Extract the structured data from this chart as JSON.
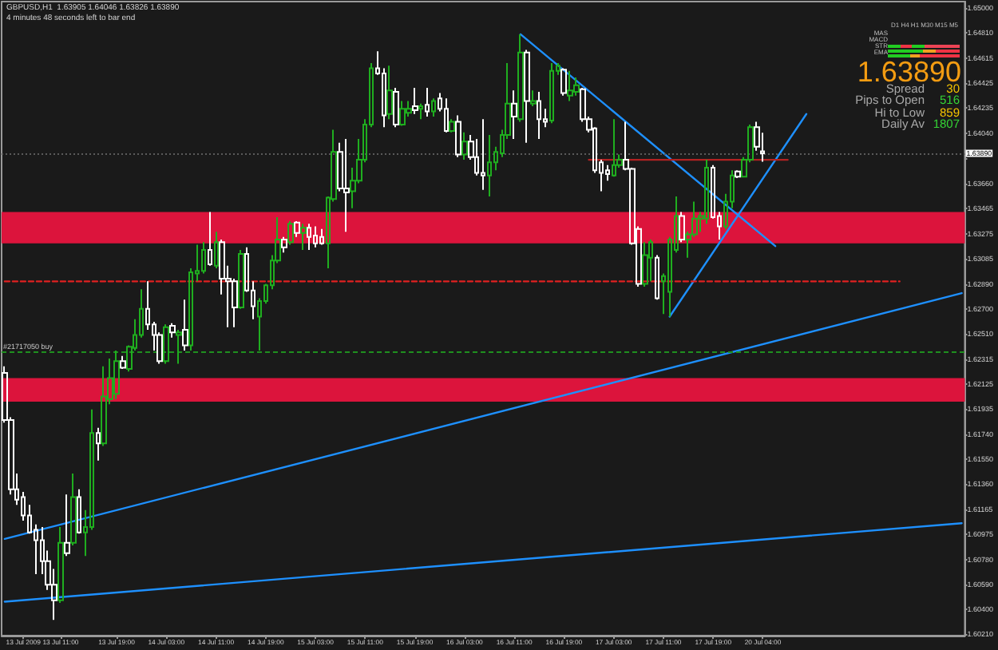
{
  "chart_data": {
    "type": "candlestick",
    "title": "GBPUSD,H1  1.63905 1.64046 1.63826 1.63890",
    "subtitle": "4 minutes 48 seconds left to bar end",
    "annotations": [
      "D1 H4 H1 M30 M15 M5",
      "MAS",
      "MACD",
      "STR",
      "EMA",
      "1.63890",
      "Spread",
      "30",
      "Pips to Open",
      "516",
      "Hi to Low",
      "859",
      "Daily Av",
      "1807"
    ],
    "categories": [
      null,
      null,
      null,
      "13 Jul 2009",
      null,
      null,
      null,
      null,
      null,
      "13 Jul 11:00",
      null,
      null,
      null,
      null,
      null,
      null,
      null,
      null,
      "13 Jul 19:00",
      null,
      null,
      null,
      null,
      null,
      null,
      null,
      "14 Jul 03:00",
      null,
      null,
      null,
      null,
      null,
      null,
      null,
      "14 Jul 11:00",
      null,
      null,
      null,
      null,
      null,
      null,
      null,
      "14 Jul 19:00",
      null,
      null,
      null,
      null,
      null,
      null,
      null,
      "15 Jul 03:00",
      null,
      null,
      null,
      null,
      null,
      null,
      null,
      "15 Jul 11:00",
      null,
      null,
      null,
      null,
      null,
      null,
      null,
      "15 Jul 19:00",
      null,
      null,
      null,
      null,
      null,
      null,
      null,
      "16 Jul 03:00",
      null,
      null,
      null,
      null,
      null,
      null,
      null,
      "16 Jul 11:00",
      null,
      null,
      null,
      null,
      null,
      null,
      null,
      "16 Jul 19:00",
      null,
      null,
      null,
      null,
      null,
      null,
      null,
      "17 Jul 03:00",
      null,
      null,
      null,
      null,
      null,
      null,
      null,
      "17 Jul 11:00",
      null,
      null,
      null,
      null,
      null,
      null,
      null,
      "17 Jul 19:00",
      null,
      null,
      null,
      null,
      null,
      null,
      null,
      "20 Jul 04:00",
      null,
      null,
      null,
      null,
      null,
      null,
      null,
      null,
      null,
      null,
      null,
      null,
      null,
      null,
      null,
      null,
      null,
      null,
      null,
      null,
      null,
      null,
      null,
      null,
      null,
      null,
      null,
      null,
      null,
      null,
      null,
      null
    ],
    "ylim": [
      1.602,
      1.6505
    ],
    "yticks": [
      {
        "value": 1.6021,
        "label": "1.60210"
      },
      {
        "value": 1.604,
        "label": "1.60400"
      },
      {
        "value": 1.6059,
        "label": "1.60590"
      },
      {
        "value": 1.6078,
        "label": "1.60780"
      },
      {
        "value": 1.60975,
        "label": "1.60975"
      },
      {
        "value": 1.61165,
        "label": "1.61165"
      },
      {
        "value": 1.6136,
        "label": "1.61360"
      },
      {
        "value": 1.6155,
        "label": "1.61550"
      },
      {
        "value": 1.6174,
        "label": "1.61740"
      },
      {
        "value": 1.61935,
        "label": "1.61935"
      },
      {
        "value": 1.62125,
        "label": "1.62125"
      },
      {
        "value": 1.62315,
        "label": "1.62315"
      },
      {
        "value": 1.6251,
        "label": "1.62510"
      },
      {
        "value": 1.627,
        "label": "1.62700"
      },
      {
        "value": 1.6289,
        "label": "1.62890"
      },
      {
        "value": 1.63085,
        "label": "1.63085"
      },
      {
        "value": 1.63275,
        "label": "1.63275"
      },
      {
        "value": 1.63465,
        "label": "1.63465"
      },
      {
        "value": 1.6366,
        "label": "1.63660"
      },
      {
        "value": 1.6385,
        "label": null
      },
      {
        "value": 1.6404,
        "label": "1.64040"
      },
      {
        "value": 1.64235,
        "label": "1.64235"
      },
      {
        "value": 1.64425,
        "label": "1.64425"
      },
      {
        "value": 1.64615,
        "label": "1.64615"
      },
      {
        "value": 1.6481,
        "label": "1.64810"
      },
      {
        "value": 1.65,
        "label": "1.65000"
      }
    ],
    "bands": [
      {
        "axis": "y",
        "from": 1.632,
        "to": 1.6344,
        "color": "#dc143c"
      },
      {
        "axis": "y",
        "from": 1.6199,
        "to": 1.6217,
        "color": "#dc143c"
      }
    ],
    "ref_lines": [
      {
        "axis": "y",
        "value": 1.6237,
        "label": "#21717050 buy",
        "color": "#1f8f1f",
        "line_style": "dashed"
      },
      {
        "axis": "y",
        "value": 1.6389,
        "label": "1.63890",
        "color": "#5a5a5a",
        "line_style": "dotted"
      }
    ],
    "series": [
      {
        "type": "line",
        "color": "#1e90ff",
        "values": [
          1.6094,
          null,
          null,
          null,
          null,
          null,
          null,
          null,
          null,
          null,
          null,
          null,
          null,
          null,
          null,
          null,
          null,
          null,
          null,
          null,
          null,
          null,
          null,
          null,
          null,
          null,
          null,
          null,
          null,
          null,
          null,
          null,
          null,
          null,
          null,
          null,
          null,
          null,
          null,
          null,
          null,
          null,
          null,
          null,
          null,
          null,
          null,
          null,
          null,
          null,
          null,
          null,
          null,
          null,
          null,
          null,
          null,
          null,
          null,
          null,
          null,
          null,
          null,
          null,
          null,
          null,
          null,
          null,
          null,
          null,
          null,
          null,
          null,
          null,
          null,
          null,
          null,
          null,
          null,
          null,
          null,
          null,
          null,
          null,
          null,
          null,
          null,
          null,
          null,
          null,
          null,
          null,
          null,
          null,
          null,
          null,
          null,
          null,
          null,
          null,
          null,
          null,
          null,
          null,
          null,
          null,
          null,
          null,
          null,
          null,
          null,
          null,
          null,
          null,
          null,
          null,
          null,
          null,
          null,
          null,
          null,
          null,
          null,
          null,
          null,
          null,
          null,
          null,
          null,
          null,
          null,
          null,
          null,
          null,
          null,
          null,
          null,
          null,
          null,
          null,
          null,
          null,
          null,
          null,
          null,
          null,
          null,
          null,
          null,
          null,
          null,
          null,
          null,
          null,
          1.6282
        ]
      },
      {
        "type": "line",
        "color": "#1e90ff",
        "values": [
          1.6046,
          null,
          null,
          null,
          null,
          null,
          null,
          null,
          null,
          null,
          null,
          null,
          null,
          null,
          null,
          null,
          null,
          null,
          null,
          null,
          null,
          null,
          null,
          null,
          null,
          null,
          null,
          null,
          null,
          null,
          null,
          null,
          null,
          null,
          null,
          null,
          null,
          null,
          null,
          null,
          null,
          null,
          null,
          null,
          null,
          null,
          null,
          null,
          null,
          null,
          null,
          null,
          null,
          null,
          null,
          null,
          null,
          null,
          null,
          null,
          null,
          null,
          null,
          null,
          null,
          null,
          null,
          null,
          null,
          null,
          null,
          null,
          null,
          null,
          null,
          null,
          null,
          null,
          null,
          null,
          null,
          null,
          null,
          null,
          null,
          null,
          null,
          null,
          null,
          null,
          null,
          null,
          null,
          null,
          null,
          null,
          null,
          null,
          null,
          null,
          null,
          null,
          null,
          null,
          null,
          null,
          null,
          null,
          null,
          null,
          null,
          null,
          null,
          null,
          null,
          null,
          null,
          null,
          null,
          null,
          null,
          null,
          null,
          null,
          null,
          null,
          null,
          null,
          null,
          null,
          null,
          null,
          null,
          null,
          null,
          null,
          null,
          null,
          null,
          null,
          null,
          null,
          null,
          null,
          null,
          null,
          null,
          null,
          null,
          null,
          null,
          null,
          null,
          null,
          1.6106
        ]
      },
      {
        "type": "line",
        "color": "#1e90ff",
        "values": [
          null,
          null,
          null,
          null,
          null,
          null,
          null,
          null,
          null,
          null,
          null,
          null,
          null,
          null,
          null,
          null,
          null,
          null,
          null,
          null,
          null,
          null,
          null,
          null,
          null,
          null,
          null,
          null,
          null,
          null,
          null,
          null,
          null,
          null,
          null,
          null,
          null,
          null,
          null,
          null,
          null,
          null,
          null,
          null,
          null,
          null,
          null,
          null,
          null,
          null,
          null,
          null,
          null,
          null,
          null,
          null,
          null,
          null,
          null,
          null,
          null,
          null,
          null,
          null,
          null,
          null,
          null,
          null,
          null,
          null,
          null,
          null,
          null,
          null,
          null,
          null,
          null,
          null,
          null,
          null,
          null,
          null,
          null,
          1.648,
          null,
          null,
          null,
          null,
          null,
          null,
          null,
          null,
          null,
          null,
          null,
          null,
          null,
          null,
          null,
          null,
          null,
          null,
          null,
          null,
          null,
          null,
          null,
          null,
          null,
          null,
          null,
          null,
          null,
          null,
          null,
          null,
          null,
          null,
          null,
          null,
          null,
          null,
          null,
          null,
          1.6318,
          null,
          null,
          null,
          null,
          null,
          null,
          null,
          null,
          null,
          null,
          null,
          null,
          null,
          null,
          null,
          null,
          null,
          null,
          null,
          null,
          null,
          null,
          null,
          null,
          null,
          null,
          null,
          null,
          null,
          null
        ]
      },
      {
        "type": "line",
        "color": "#1e90ff",
        "values": [
          null,
          null,
          null,
          null,
          null,
          null,
          null,
          null,
          null,
          null,
          null,
          null,
          null,
          null,
          null,
          null,
          null,
          null,
          null,
          null,
          null,
          null,
          null,
          null,
          null,
          null,
          null,
          null,
          null,
          null,
          null,
          null,
          null,
          null,
          null,
          null,
          null,
          null,
          null,
          null,
          null,
          null,
          null,
          null,
          null,
          null,
          null,
          null,
          null,
          null,
          null,
          null,
          null,
          null,
          null,
          null,
          null,
          null,
          null,
          null,
          null,
          null,
          null,
          null,
          null,
          null,
          null,
          null,
          null,
          null,
          null,
          null,
          null,
          null,
          null,
          null,
          null,
          null,
          null,
          null,
          null,
          null,
          null,
          null,
          null,
          null,
          null,
          null,
          null,
          null,
          null,
          null,
          null,
          null,
          null,
          null,
          null,
          null,
          null,
          null,
          null,
          null,
          null,
          null,
          null,
          null,
          null,
          1.6264,
          null,
          null,
          null,
          null,
          null,
          null,
          null,
          null,
          null,
          null,
          null,
          null,
          null,
          null,
          null,
          null,
          null,
          null,
          null,
          null,
          null,
          1.6419,
          null,
          null,
          null,
          null,
          null,
          null,
          null,
          null,
          null,
          null,
          null,
          null,
          null,
          null,
          null,
          null,
          null,
          null,
          null,
          null,
          null,
          null,
          null,
          null,
          null
        ]
      },
      {
        "type": "line",
        "color": "#b22222",
        "values": [
          null,
          null,
          null,
          null,
          null,
          null,
          null,
          null,
          null,
          null,
          null,
          null,
          null,
          null,
          null,
          null,
          null,
          null,
          null,
          null,
          null,
          null,
          null,
          null,
          null,
          null,
          null,
          null,
          null,
          null,
          null,
          null,
          null,
          null,
          null,
          null,
          null,
          null,
          null,
          null,
          null,
          null,
          null,
          null,
          null,
          null,
          null,
          null,
          null,
          null,
          null,
          null,
          null,
          null,
          null,
          null,
          null,
          null,
          null,
          null,
          null,
          null,
          null,
          null,
          null,
          null,
          null,
          null,
          null,
          null,
          null,
          null,
          null,
          null,
          null,
          null,
          null,
          null,
          null,
          null,
          null,
          null,
          null,
          null,
          null,
          null,
          null,
          null,
          null,
          null,
          null,
          null,
          null,
          null,
          1.6384,
          null,
          null,
          null,
          null,
          null,
          null,
          null,
          null,
          null,
          null,
          null,
          null,
          null,
          null,
          null,
          null,
          null,
          null,
          null,
          null,
          null,
          null,
          null,
          null,
          null,
          null,
          null,
          null,
          null,
          null,
          null,
          1.6384,
          null,
          null,
          null,
          null,
          null,
          null,
          null,
          null,
          null,
          null,
          null,
          null,
          null,
          null,
          null,
          null,
          null,
          null,
          null,
          null,
          null,
          null,
          null,
          null,
          null,
          null,
          null,
          null
        ]
      },
      {
        "type": "line",
        "color": "#e02020",
        "line_style": "dashed",
        "values": [
          1.6291,
          null,
          null,
          null,
          null,
          null,
          null,
          null,
          null,
          null,
          null,
          null,
          null,
          null,
          null,
          null,
          null,
          null,
          null,
          null,
          null,
          null,
          null,
          null,
          null,
          null,
          null,
          null,
          null,
          null,
          null,
          null,
          null,
          null,
          null,
          null,
          null,
          null,
          null,
          null,
          null,
          null,
          null,
          null,
          null,
          null,
          null,
          null,
          null,
          null,
          null,
          null,
          null,
          null,
          null,
          null,
          null,
          null,
          null,
          null,
          null,
          null,
          null,
          null,
          null,
          null,
          null,
          null,
          null,
          null,
          null,
          null,
          null,
          null,
          null,
          null,
          null,
          null,
          null,
          null,
          null,
          null,
          null,
          null,
          null,
          null,
          null,
          null,
          null,
          null,
          null,
          null,
          null,
          null,
          null,
          null,
          null,
          null,
          null,
          null,
          null,
          null,
          null,
          null,
          null,
          null,
          null,
          null,
          null,
          null,
          null,
          null,
          null,
          null,
          null,
          null,
          null,
          null,
          null,
          null,
          null,
          null,
          null,
          null,
          null,
          null,
          null,
          null,
          null,
          null,
          null,
          null,
          null,
          null,
          null,
          null,
          null,
          null,
          null,
          null,
          null,
          null,
          null,
          null,
          1.6291,
          null,
          null,
          null,
          null,
          null,
          null,
          null,
          null,
          null,
          null
        ]
      },
      {
        "ohlc": [
          [
            1.6221,
            1.6226,
            1.6183,
            1.6185
          ],
          [
            1.6185,
            1.6187,
            1.6128,
            1.6132
          ],
          [
            1.6132,
            1.6144,
            1.612,
            1.6124
          ],
          [
            1.6126,
            1.613,
            1.6108,
            1.6112
          ],
          [
            1.6112,
            1.612,
            1.6098,
            1.6099
          ],
          [
            1.6101,
            1.6105,
            1.6067,
            1.6093
          ],
          [
            1.6093,
            1.6103,
            1.6067,
            1.6077
          ],
          [
            1.6077,
            1.6085,
            1.6055,
            1.6059
          ],
          [
            1.6059,
            1.6071,
            1.6032,
            1.6047
          ],
          [
            1.6047,
            1.6103,
            1.6045,
            1.6091
          ],
          [
            1.6091,
            1.6128,
            1.6081,
            1.6083
          ],
          [
            1.6091,
            1.6144,
            1.6089,
            1.6126
          ],
          [
            1.6126,
            1.6132,
            1.6098,
            1.6099
          ],
          [
            1.6099,
            1.6116,
            1.6081,
            1.6103
          ],
          [
            1.6103,
            1.6193,
            1.6101,
            1.6175
          ],
          [
            1.6175,
            1.6179,
            1.6154,
            1.6167
          ],
          [
            1.6167,
            1.6226,
            1.6165,
            1.6203
          ],
          [
            1.6201,
            1.6232,
            1.6197,
            1.6217
          ],
          [
            1.6205,
            1.6238,
            1.6201,
            1.623
          ],
          [
            1.623,
            1.6234,
            1.6224,
            1.6225
          ],
          [
            1.6224,
            1.6242,
            1.6222,
            1.6241
          ],
          [
            1.624,
            1.6262,
            1.6238,
            1.625
          ],
          [
            1.625,
            1.6285,
            1.6248,
            1.627
          ],
          [
            1.627,
            1.6291,
            1.6254,
            1.6258
          ],
          [
            1.6258,
            1.626,
            1.6238,
            1.625
          ],
          [
            1.625,
            1.6252,
            1.6228,
            1.623
          ],
          [
            1.623,
            1.6258,
            1.6228,
            1.6256
          ],
          [
            1.6257,
            1.6259,
            1.6248,
            1.6252
          ],
          [
            1.625,
            1.6254,
            1.6228,
            1.6252
          ],
          [
            1.6254,
            1.6277,
            1.6238,
            1.6242
          ],
          [
            1.6242,
            1.6301,
            1.6238,
            1.6298
          ],
          [
            1.6297,
            1.6319,
            1.6291,
            1.6299
          ],
          [
            1.6299,
            1.6321,
            1.6297,
            1.6315
          ],
          [
            1.6315,
            1.6344,
            1.6303,
            1.6304
          ],
          [
            1.6303,
            1.6329,
            1.6301,
            1.6321
          ],
          [
            1.6321,
            1.6323,
            1.6281,
            1.6293
          ],
          [
            1.6293,
            1.6303,
            1.6256,
            1.6291
          ],
          [
            1.6291,
            1.6293,
            1.6256,
            1.6271
          ],
          [
            1.6271,
            1.6315,
            1.627,
            1.6312
          ],
          [
            1.6312,
            1.6317,
            1.6283,
            1.6284
          ],
          [
            1.6284,
            1.6291,
            1.6262,
            1.6272
          ],
          [
            1.6264,
            1.6278,
            1.6238,
            1.6276
          ],
          [
            1.6276,
            1.6289,
            1.6274,
            1.6288
          ],
          [
            1.6288,
            1.6311,
            1.6285,
            1.6307
          ],
          [
            1.6307,
            1.634,
            1.6305,
            1.6323
          ],
          [
            1.6323,
            1.6325,
            1.6313,
            1.6317
          ],
          [
            1.6321,
            1.6337,
            1.6319,
            1.6335
          ],
          [
            1.6336,
            1.6337,
            1.6325,
            1.6328
          ],
          [
            1.6328,
            1.6335,
            1.6315,
            1.6332
          ],
          [
            1.6332,
            1.6335,
            1.6315,
            1.6325
          ],
          [
            1.6326,
            1.6333,
            1.6317,
            1.632
          ],
          [
            1.6325,
            1.6331,
            1.6319,
            1.632
          ],
          [
            1.632,
            1.6356,
            1.6301,
            1.6355
          ],
          [
            1.6354,
            1.6407,
            1.6352,
            1.639
          ],
          [
            1.639,
            1.6397,
            1.636,
            1.6362
          ],
          [
            1.6362,
            1.64,
            1.6329,
            1.6359
          ],
          [
            1.636,
            1.6378,
            1.6347,
            1.6368
          ],
          [
            1.6368,
            1.64,
            1.6366,
            1.6384
          ],
          [
            1.6384,
            1.6415,
            1.6382,
            1.6411
          ],
          [
            1.6411,
            1.6458,
            1.6409,
            1.6454
          ],
          [
            1.6454,
            1.6467,
            1.6449,
            1.645
          ],
          [
            1.645,
            1.6454,
            1.6409,
            1.6418
          ],
          [
            1.6419,
            1.6456,
            1.6415,
            1.6437
          ],
          [
            1.6436,
            1.6439,
            1.6409,
            1.6411
          ],
          [
            1.6411,
            1.6429,
            1.641,
            1.6423
          ],
          [
            1.642,
            1.6429,
            1.6417,
            1.6423
          ],
          [
            1.6425,
            1.6439,
            1.6419,
            1.6422
          ],
          [
            1.6423,
            1.6427,
            1.6415,
            1.6425
          ],
          [
            1.6426,
            1.6439,
            1.6417,
            1.6421
          ],
          [
            1.6421,
            1.6431,
            1.6417,
            1.6429
          ],
          [
            1.6431,
            1.6435,
            1.6421,
            1.6423
          ],
          [
            1.6423,
            1.6431,
            1.6405,
            1.6406
          ],
          [
            1.6406,
            1.6415,
            1.6405,
            1.6413
          ],
          [
            1.6413,
            1.6418,
            1.6386,
            1.6388
          ],
          [
            1.6388,
            1.6405,
            1.6384,
            1.6398
          ],
          [
            1.6398,
            1.6403,
            1.6384,
            1.6386
          ],
          [
            1.6386,
            1.64,
            1.6372,
            1.6374
          ],
          [
            1.6374,
            1.6415,
            1.6361,
            1.6372
          ],
          [
            1.6372,
            1.6403,
            1.6356,
            1.6382
          ],
          [
            1.6382,
            1.6394,
            1.6376,
            1.639
          ],
          [
            1.6389,
            1.6407,
            1.6386,
            1.6403
          ],
          [
            1.6403,
            1.6458,
            1.64,
            1.6427
          ],
          [
            1.6427,
            1.6437,
            1.64,
            1.6417
          ],
          [
            1.6415,
            1.648,
            1.6413,
            1.6466
          ],
          [
            1.6466,
            1.6468,
            1.6397,
            1.6429
          ],
          [
            1.6427,
            1.6437,
            1.6425,
            1.6429
          ],
          [
            1.6429,
            1.6436,
            1.64,
            1.6415
          ],
          [
            1.6415,
            1.6423,
            1.6409,
            1.6413
          ],
          [
            1.6414,
            1.6458,
            1.6412,
            1.6452
          ],
          [
            1.6452,
            1.6458,
            1.6449,
            1.6456
          ],
          [
            1.6453,
            1.6454,
            1.6433,
            1.6435
          ],
          [
            1.6433,
            1.6452,
            1.6429,
            1.6437
          ],
          [
            1.6436,
            1.6447,
            1.6433,
            1.6441
          ],
          [
            1.6438,
            1.6439,
            1.6413,
            1.6415
          ],
          [
            1.6415,
            1.6417,
            1.6405,
            1.6407
          ],
          [
            1.6408,
            1.6409,
            1.6374,
            1.6376
          ],
          [
            1.6382,
            1.6384,
            1.636,
            1.6374
          ],
          [
            1.6376,
            1.638,
            1.6368,
            1.6373
          ],
          [
            1.6372,
            1.6415,
            1.6371,
            1.638
          ],
          [
            1.638,
            1.6388,
            1.6378,
            1.6384
          ],
          [
            1.6384,
            1.6413,
            1.6376,
            1.6377
          ],
          [
            1.6377,
            1.6378,
            1.6319,
            1.632
          ],
          [
            1.6331,
            1.6333,
            1.6287,
            1.6289
          ],
          [
            1.6289,
            1.6321,
            1.6287,
            1.6311
          ],
          [
            1.6309,
            1.6323,
            1.6291,
            1.6321
          ],
          [
            1.6309,
            1.6311,
            1.6277,
            1.6278
          ],
          [
            1.6291,
            1.6297,
            1.6266,
            1.6295
          ],
          [
            1.6283,
            1.6325,
            1.6264,
            1.6323
          ],
          [
            1.6315,
            1.6356,
            1.6313,
            1.6341
          ],
          [
            1.6341,
            1.6344,
            1.6321,
            1.6323
          ],
          [
            1.6323,
            1.6329,
            1.6309,
            1.6327
          ],
          [
            1.6327,
            1.6352,
            1.6325,
            1.6339
          ],
          [
            1.6339,
            1.6344,
            1.6329,
            1.6341
          ],
          [
            1.6339,
            1.6384,
            1.6335,
            1.6378
          ],
          [
            1.6378,
            1.638,
            1.6339,
            1.634
          ],
          [
            1.6341,
            1.6344,
            1.6323,
            1.6333
          ],
          [
            1.6333,
            1.6358,
            1.6331,
            1.6352
          ],
          [
            1.6352,
            1.6376,
            1.6347,
            1.6372
          ],
          [
            1.6375,
            1.6376,
            1.637,
            1.6371
          ],
          [
            1.6371,
            1.6386,
            1.6371,
            1.6384
          ],
          [
            1.6384,
            1.6411,
            1.6382,
            1.6409
          ],
          [
            1.6409,
            1.6413,
            1.6391,
            1.6394
          ],
          [
            1.63905,
            1.64046,
            1.63826,
            1.6389
          ],
          null,
          null,
          null,
          null,
          null,
          null,
          null,
          null,
          null,
          null,
          null,
          null,
          null,
          null,
          null,
          null,
          null,
          null,
          null,
          null,
          null,
          null,
          null,
          null,
          null,
          null,
          null,
          null,
          null,
          null,
          null,
          null
        ],
        "colors": [
          "#ffffff",
          "#ffffff",
          "#ffffff",
          "#ffffff",
          "#ffffff",
          "#ffffff",
          "#ffffff",
          "#ffffff",
          "#ffffff",
          "#1fae1f",
          "#ffffff",
          "#1fae1f",
          "#ffffff",
          "#1fae1f",
          "#1fae1f",
          "#ffffff",
          "#1fae1f",
          "#1fae1f",
          "#1fae1f",
          "#ffffff",
          "#1fae1f",
          "#1fae1f",
          "#1fae1f",
          "#ffffff",
          "#ffffff",
          "#ffffff",
          "#1fae1f",
          "#ffffff",
          "#1fae1f",
          "#ffffff",
          "#1fae1f",
          "#1fae1f",
          "#1fae1f",
          "#ffffff",
          "#1fae1f",
          "#ffffff",
          "#ffffff",
          "#ffffff",
          "#1fae1f",
          "#ffffff",
          "#ffffff",
          "#1fae1f",
          "#1fae1f",
          "#1fae1f",
          "#1fae1f",
          "#ffffff",
          "#1fae1f",
          "#ffffff",
          "#1fae1f",
          "#ffffff",
          "#ffffff",
          "#ffffff",
          "#1fae1f",
          "#1fae1f",
          "#ffffff",
          "#ffffff",
          "#1fae1f",
          "#1fae1f",
          "#1fae1f",
          "#1fae1f",
          "#ffffff",
          "#ffffff",
          "#1fae1f",
          "#ffffff",
          "#1fae1f",
          "#1fae1f",
          "#ffffff",
          "#1fae1f",
          "#ffffff",
          "#1fae1f",
          "#ffffff",
          "#ffffff",
          "#1fae1f",
          "#ffffff",
          "#1fae1f",
          "#ffffff",
          "#ffffff",
          "#ffffff",
          "#1fae1f",
          "#1fae1f",
          "#1fae1f",
          "#1fae1f",
          "#ffffff",
          "#1fae1f",
          "#ffffff",
          "#1fae1f",
          "#ffffff",
          "#ffffff",
          "#1fae1f",
          "#1fae1f",
          "#ffffff",
          "#1fae1f",
          "#1fae1f",
          "#ffffff",
          "#ffffff",
          "#ffffff",
          "#ffffff",
          "#ffffff",
          "#1fae1f",
          "#1fae1f",
          "#ffffff",
          "#ffffff",
          "#ffffff",
          "#1fae1f",
          "#1fae1f",
          "#ffffff",
          "#1fae1f",
          "#1fae1f",
          "#1fae1f",
          "#ffffff",
          "#1fae1f",
          "#1fae1f",
          "#1fae1f",
          "#1fae1f",
          "#ffffff",
          "#ffffff",
          "#1fae1f",
          "#1fae1f",
          "#ffffff",
          "#1fae1f",
          "#1fae1f",
          "#ffffff",
          "#ffffff",
          null,
          null,
          null,
          null,
          null,
          null,
          null,
          null,
          null,
          null,
          null,
          null,
          null,
          null,
          null,
          null,
          null,
          null,
          null,
          null,
          null,
          null,
          null,
          null,
          null,
          null,
          null,
          null,
          null,
          null,
          null,
          null
        ]
      }
    ]
  }
}
